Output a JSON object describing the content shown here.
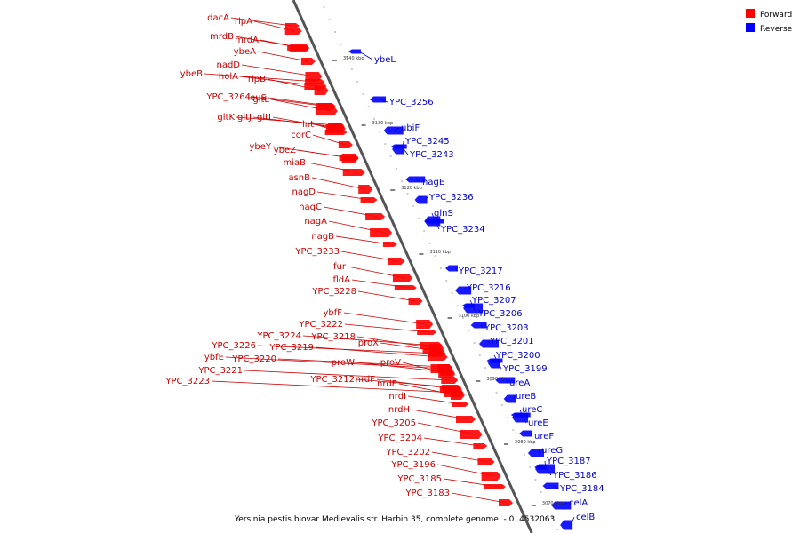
{
  "caption": "Yersinia pestis biovar Medievalis str. Harbin 35, complete genome. - 0..4532063",
  "legend": [
    {
      "label": "Forward",
      "color": "#ff0000"
    },
    {
      "label": "Reverse",
      "color": "#0000ff"
    }
  ],
  "colors": {
    "forward_label": "#cc0000",
    "reverse_label": "#0000cc",
    "backbone": "#888888"
  },
  "ticks": [
    "3140 kbp",
    "3130 kbp",
    "3120 kbp",
    "3110 kbp",
    "3100 kbp",
    "3090 kbp",
    "3080 kbp",
    "3070 kbp"
  ],
  "forward_genes": [
    "dacA",
    "rlpA",
    "mrdB",
    "mrdA",
    "ybeA",
    "nadD",
    "ybeB",
    "holA",
    "rlpB",
    "leuS",
    "YPC_3264",
    "gltL",
    "gltK",
    "gltJ",
    "gltI",
    "lnt",
    "corC",
    "ybeY",
    "ybeZ",
    "miaB",
    "asnB",
    "nagD",
    "nagC",
    "nagA",
    "nagB",
    "YPC_3233",
    "fur",
    "fldA",
    "YPC_3228",
    "ybfF",
    "YPC_3222",
    "YPC_3224",
    "YPC_3218",
    "YPC_3226",
    "YPC_3219",
    "ybfE",
    "YPC_3220",
    "YPC_3221",
    "YPC_3223",
    "proX",
    "proW",
    "proV",
    "YPC_3212",
    "nrdF",
    "nrdE",
    "nrdI",
    "nrdH",
    "YPC_3205",
    "YPC_3204",
    "YPC_3202",
    "YPC_3196",
    "YPC_3185",
    "YPC_3183"
  ],
  "reverse_genes": [
    "ybeL",
    "YPC_3256",
    "ubiF",
    "YPC_3245",
    "YPC_3243",
    "nagE",
    "YPC_3236",
    "glnS",
    "YPC_3234",
    "YPC_3217",
    "YPC_3216",
    "YPC_3207",
    "YPC_3206",
    "YPC_3203",
    "YPC_3201",
    "YPC_3200",
    "YPC_3199",
    "ureA",
    "ureB",
    "ureC",
    "ureE",
    "ureF",
    "ureG",
    "YPC_3187",
    "YPC_3186",
    "YPC_3184",
    "celA",
    "celB"
  ]
}
